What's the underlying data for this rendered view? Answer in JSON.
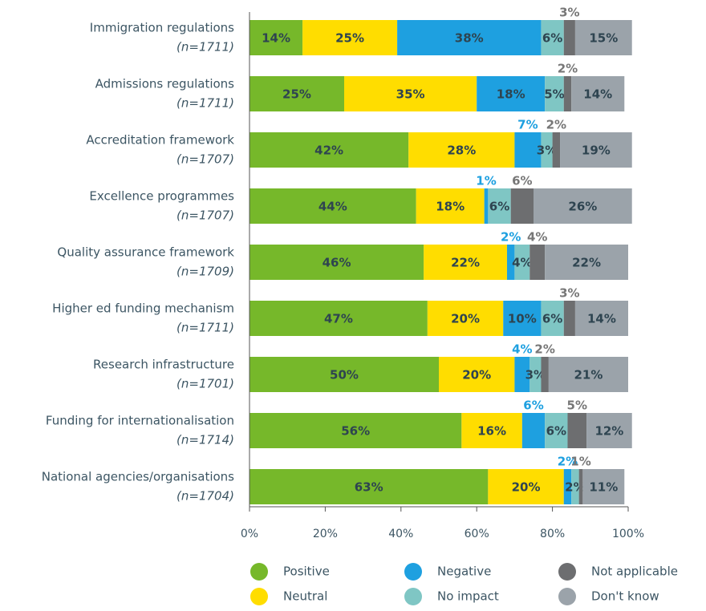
{
  "chart_data": {
    "type": "stacked_bar_horizontal",
    "categories": [
      "Immigration regulations",
      "Admissions regulations",
      "Accreditation framework",
      "Excellence programmes",
      "Quality assurance framework",
      "Higher ed funding mechanism",
      "Research infrastructure",
      "Funding for internationalisation",
      "National agencies/organisations"
    ],
    "sample_sizes": [
      "(n=1711)",
      "(n=1711)",
      "(n=1707)",
      "(n=1707)",
      "(n=1709)",
      "(n=1711)",
      "(n=1701)",
      "(n=1714)",
      "(n=1704)"
    ],
    "series": [
      {
        "name": "Positive",
        "color": "#76b82a",
        "values": [
          14,
          25,
          42,
          44,
          46,
          47,
          50,
          56,
          63
        ],
        "value_labels": [
          "14%",
          "25%",
          "42%",
          "44%",
          "46%",
          "47%",
          "50%",
          "56%",
          "63%"
        ]
      },
      {
        "name": "Neutral",
        "color": "#ffdd00",
        "values": [
          25,
          35,
          28,
          18,
          22,
          20,
          20,
          16,
          20
        ],
        "value_labels": [
          "25%",
          "35%",
          "28%",
          "18%",
          "22%",
          "20%",
          "20%",
          "16%",
          "20%"
        ]
      },
      {
        "name": "Negative",
        "color": "#1ea0e0",
        "values": [
          38,
          18,
          7,
          1,
          2,
          10,
          4,
          6,
          2
        ],
        "value_labels": [
          "38%",
          "18%",
          "7%",
          "1%",
          "2%",
          "10%",
          "4%",
          "6%",
          "2%"
        ]
      },
      {
        "name": "No impact",
        "color": "#7fc6c4",
        "values": [
          6,
          5,
          3,
          6,
          4,
          6,
          3,
          6,
          2
        ],
        "value_labels": [
          "6%",
          "5%",
          "3%",
          "6%",
          "4%",
          "6%",
          "3%",
          "6%",
          "2%"
        ]
      },
      {
        "name": "Not applicable",
        "color": "#6d6e70",
        "values": [
          3,
          2,
          2,
          6,
          4,
          3,
          2,
          5,
          1
        ],
        "value_labels": [
          "3%",
          "2%",
          "2%",
          "6%",
          "4%",
          "3%",
          "2%",
          "5%",
          "1%"
        ]
      },
      {
        "name": "Don't know",
        "color": "#9ba3aa",
        "values": [
          15,
          14,
          19,
          26,
          22,
          14,
          21,
          12,
          11
        ],
        "value_labels": [
          "15%",
          "14%",
          "19%",
          "26%",
          "22%",
          "14%",
          "21%",
          "12%",
          "11%"
        ]
      }
    ],
    "xlim": [
      0,
      100
    ],
    "xticks": [
      {
        "value": 0,
        "label": "0%"
      },
      {
        "value": 20,
        "label": "20%"
      },
      {
        "value": 40,
        "label": "40%"
      },
      {
        "value": 60,
        "label": "60%"
      },
      {
        "value": 80,
        "label": "80%"
      },
      {
        "value": 100,
        "label": "100%"
      }
    ]
  }
}
